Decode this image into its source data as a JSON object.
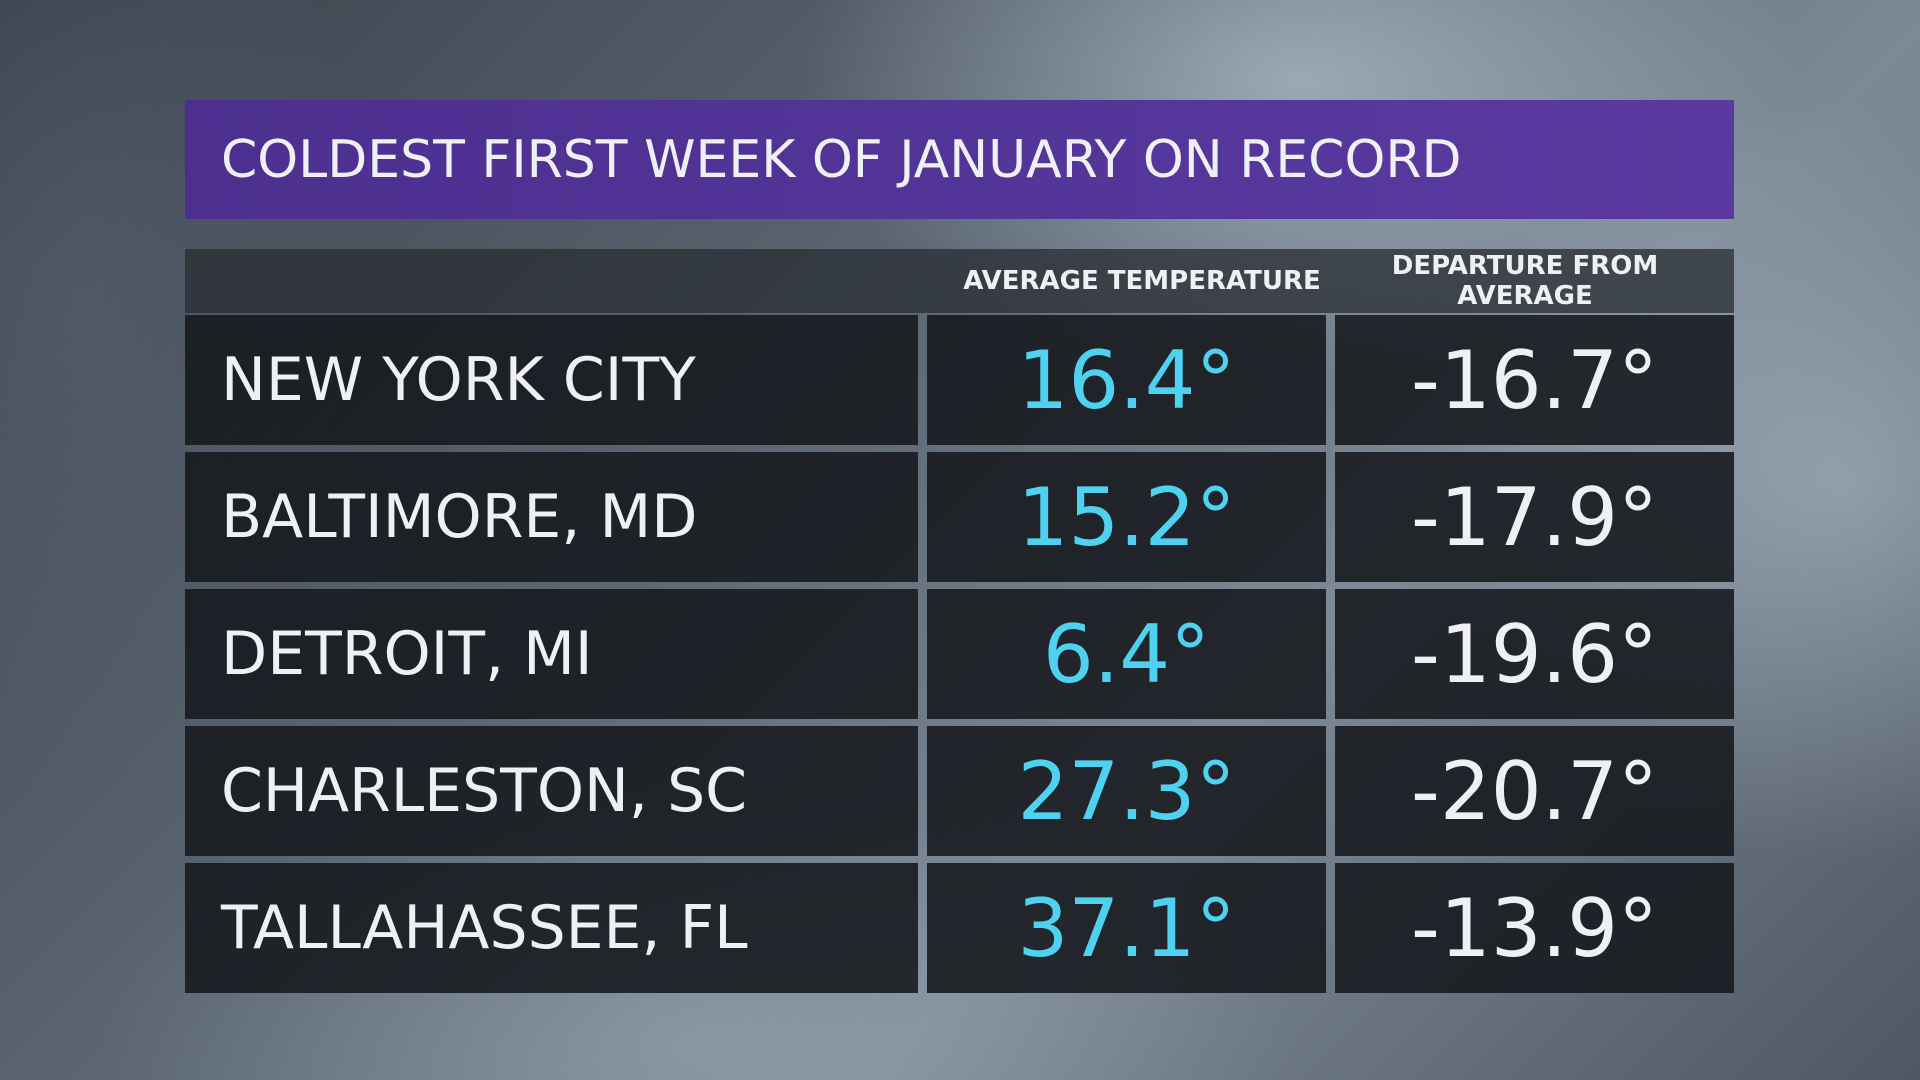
{
  "title": "COLDEST FIRST WEEK OF JANUARY ON RECORD",
  "table": {
    "headers": [
      "AVERAGE TEMPERATURE",
      "DEPARTURE FROM AVERAGE"
    ],
    "rows": [
      [
        "NEW YORK CITY",
        "16.4°",
        "-16.7°"
      ],
      [
        "BALTIMORE, MD",
        "15.2°",
        "-17.9°"
      ],
      [
        "DETROIT, MI",
        "6.4°",
        "-19.6°"
      ],
      [
        "CHARLESTON, SC",
        "27.3°",
        "-20.7°"
      ],
      [
        "TALLAHASSEE, FL",
        "37.1°",
        "-13.9°"
      ]
    ]
  }
}
